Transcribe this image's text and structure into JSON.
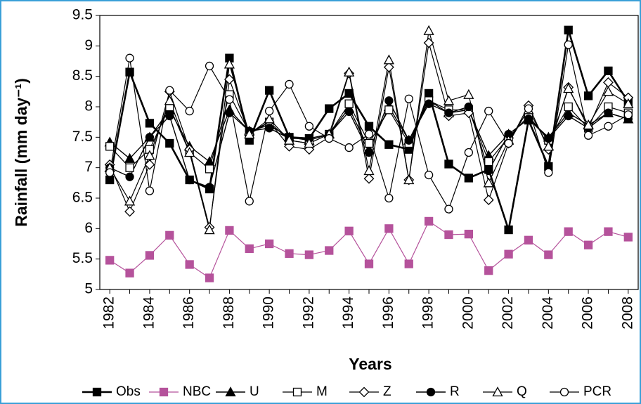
{
  "chart_data": {
    "type": "line",
    "x_label": "Years",
    "y_label": "Rainfall (mm day⁻¹)",
    "x": [
      1982,
      1983,
      1984,
      1985,
      1986,
      1987,
      1988,
      1989,
      1990,
      1991,
      1992,
      1993,
      1994,
      1995,
      1996,
      1997,
      1998,
      1999,
      2000,
      2001,
      2002,
      2003,
      2004,
      2005,
      2006,
      2007,
      2008
    ],
    "xlim": [
      1981.5,
      2008.5
    ],
    "xticks": [
      1982,
      1984,
      1986,
      1988,
      1990,
      1992,
      1994,
      1996,
      1998,
      2000,
      2002,
      2004,
      2006,
      2008
    ],
    "ylim": [
      5,
      9.5
    ],
    "yticks": [
      5,
      5.5,
      6,
      6.5,
      7,
      7.5,
      8,
      8.5,
      9,
      9.5
    ],
    "legend": "bottom",
    "series": [
      {
        "name": "Obs",
        "color": "#000000",
        "marker": "square",
        "linewidth": 2.6,
        "values": [
          6.8,
          8.57,
          7.73,
          7.4,
          6.8,
          6.65,
          8.8,
          7.45,
          8.27,
          7.5,
          7.48,
          7.97,
          8.22,
          7.68,
          7.38,
          7.3,
          8.22,
          7.06,
          6.83,
          6.97,
          5.98,
          7.78,
          7.02,
          9.26,
          8.18,
          8.59,
          8.08
        ]
      },
      {
        "name": "NBC",
        "color": "#b5529b",
        "marker": "square",
        "linewidth": 1.2,
        "values": [
          5.48,
          5.27,
          5.56,
          5.89,
          5.41,
          5.19,
          5.97,
          5.67,
          5.75,
          5.59,
          5.57,
          5.64,
          5.96,
          5.42,
          6.0,
          5.42,
          6.12,
          5.9,
          5.91,
          5.31,
          5.58,
          5.81,
          5.57,
          5.95,
          5.73,
          5.95,
          5.86
        ]
      },
      {
        "name": "U",
        "color": "#000000",
        "marker": "triangle",
        "linewidth": 1.4,
        "values": [
          7.42,
          7.15,
          7.5,
          7.95,
          7.35,
          7.1,
          7.95,
          7.6,
          7.7,
          7.5,
          7.45,
          7.55,
          7.98,
          7.3,
          8.0,
          7.45,
          8.1,
          7.9,
          7.95,
          7.2,
          7.55,
          7.8,
          7.5,
          7.9,
          7.7,
          7.9,
          7.8
        ]
      },
      {
        "name": "M",
        "color": "#000000",
        "marker": "square-open",
        "linewidth": 1.2,
        "values": [
          7.35,
          7.0,
          7.3,
          8.0,
          7.25,
          6.98,
          8.2,
          7.58,
          7.75,
          7.45,
          7.4,
          7.55,
          8.05,
          7.4,
          7.95,
          7.4,
          8.1,
          7.95,
          7.95,
          7.1,
          7.5,
          7.85,
          7.45,
          8.0,
          7.65,
          8.0,
          7.9
        ]
      },
      {
        "name": "Z",
        "color": "#000000",
        "marker": "diamond-open",
        "linewidth": 1.2,
        "values": [
          7.05,
          6.28,
          7.05,
          8.25,
          7.3,
          6.02,
          8.45,
          7.55,
          7.75,
          7.35,
          7.3,
          7.5,
          8.55,
          6.82,
          8.65,
          6.8,
          9.05,
          7.85,
          7.9,
          6.47,
          7.4,
          8.02,
          7.3,
          8.32,
          7.65,
          8.4,
          8.15
        ]
      },
      {
        "name": "R",
        "color": "#000000",
        "marker": "circle",
        "linewidth": 1.4,
        "values": [
          7.0,
          6.85,
          7.5,
          7.85,
          6.8,
          6.68,
          7.9,
          7.6,
          7.65,
          7.48,
          7.48,
          7.55,
          7.92,
          7.25,
          8.1,
          7.45,
          8.05,
          7.9,
          8.0,
          6.95,
          7.55,
          7.8,
          7.48,
          7.85,
          7.65,
          7.9,
          7.8
        ]
      },
      {
        "name": "Q",
        "color": "#000000",
        "marker": "triangle-open",
        "linewidth": 1.2,
        "values": [
          7.0,
          6.45,
          7.2,
          8.1,
          7.25,
          5.98,
          8.7,
          7.55,
          7.8,
          7.45,
          7.4,
          7.55,
          8.57,
          6.95,
          8.77,
          6.8,
          9.25,
          8.1,
          8.2,
          6.75,
          7.45,
          7.95,
          7.35,
          8.3,
          7.7,
          8.25,
          8.05
        ]
      },
      {
        "name": "PCR",
        "color": "#000000",
        "marker": "circle-open",
        "linewidth": 1.2,
        "values": [
          6.92,
          8.8,
          6.62,
          8.27,
          7.93,
          8.67,
          8.12,
          6.45,
          7.93,
          8.37,
          7.68,
          7.48,
          7.33,
          7.55,
          6.5,
          8.13,
          6.88,
          6.32,
          7.25,
          7.93,
          7.4,
          7.97,
          6.92,
          9.02,
          7.53,
          7.68,
          7.87
        ]
      }
    ]
  }
}
